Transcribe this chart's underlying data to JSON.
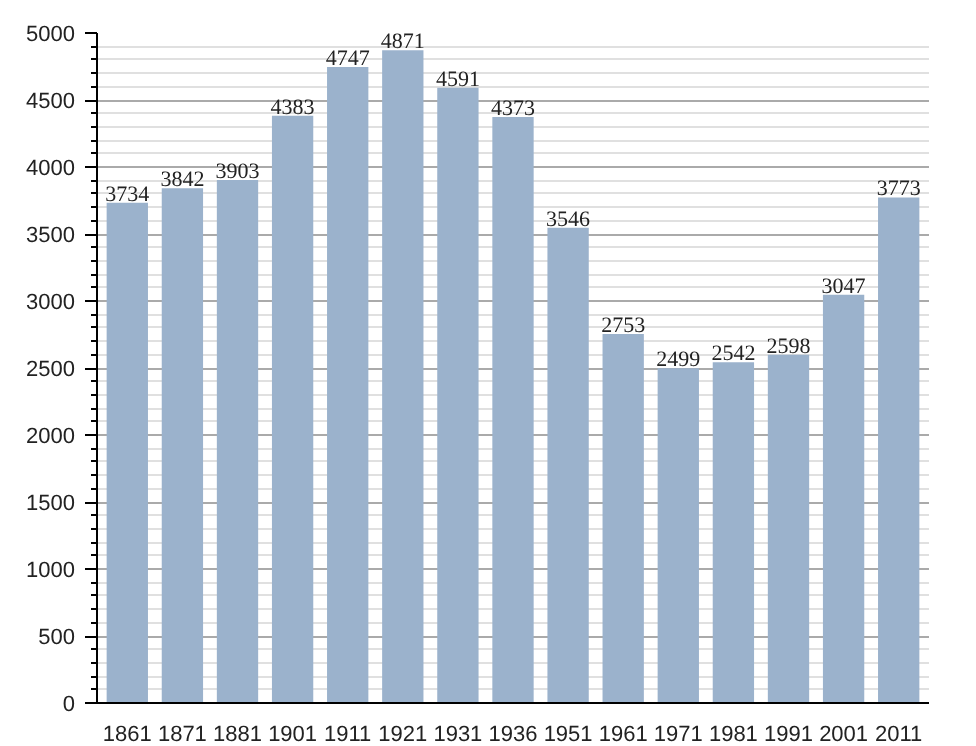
{
  "chart_data": {
    "type": "bar",
    "categories": [
      "1861",
      "1871",
      "1881",
      "1901",
      "1911",
      "1921",
      "1931",
      "1936",
      "1951",
      "1961",
      "1971",
      "1981",
      "1991",
      "2001",
      "2011"
    ],
    "values": [
      3734,
      3842,
      3903,
      4383,
      4747,
      4871,
      4591,
      4373,
      3546,
      2753,
      2499,
      2542,
      2598,
      3047,
      3773
    ],
    "color": "#9bb2cc",
    "data_labels": true,
    "ylim": [
      0,
      5000
    ],
    "yticks": [
      0,
      {
        "value": 100,
        "label": null
      },
      {
        "value": 200,
        "label": null
      },
      {
        "value": 300,
        "label": null
      },
      {
        "value": 400,
        "label": null
      },
      500,
      {
        "value": 600,
        "label": null
      },
      {
        "value": 700,
        "label": null
      },
      {
        "value": 800,
        "label": null
      },
      {
        "value": 900,
        "label": null
      },
      1000,
      {
        "value": 1100,
        "label": null
      },
      {
        "value": 1200,
        "label": null
      },
      {
        "value": 1300,
        "label": null
      },
      {
        "value": 1400,
        "label": null
      },
      1500,
      {
        "value": 1600,
        "label": null
      },
      {
        "value": 1700,
        "label": null
      },
      {
        "value": 1800,
        "label": null
      },
      {
        "value": 1900,
        "label": null
      },
      2000,
      {
        "value": 2100,
        "label": null
      },
      {
        "value": 2200,
        "label": null
      },
      {
        "value": 2300,
        "label": null
      },
      {
        "value": 2400,
        "label": null
      },
      2500,
      {
        "value": 2600,
        "label": null
      },
      {
        "value": 2700,
        "label": null
      },
      {
        "value": 2800,
        "label": null
      },
      {
        "value": 2900,
        "label": null
      },
      3000,
      {
        "value": 3100,
        "label": null
      },
      {
        "value": 3200,
        "label": null
      },
      {
        "value": 3300,
        "label": null
      },
      {
        "value": 3400,
        "label": null
      },
      3500,
      {
        "value": 3600,
        "label": null
      },
      {
        "value": 3700,
        "label": null
      },
      {
        "value": 3800,
        "label": null
      },
      {
        "value": 3900,
        "label": null
      },
      4000,
      {
        "value": 4100,
        "label": null
      },
      {
        "value": 4200,
        "label": null
      },
      {
        "value": 4300,
        "label": null
      },
      {
        "value": 4400,
        "label": null
      },
      4500,
      {
        "value": 4600,
        "label": null
      },
      {
        "value": 4700,
        "label": null
      },
      {
        "value": 4800,
        "label": null
      },
      {
        "value": 4900,
        "label": null
      },
      5000
    ],
    "grid": "y"
  }
}
